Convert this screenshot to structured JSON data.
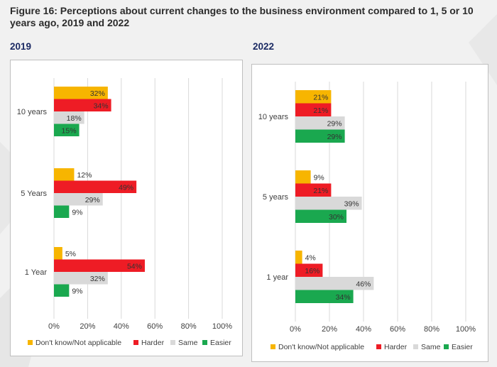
{
  "title": "Figure 16: Perceptions about current changes to the business environment compared to 1, 5 or 10 years ago, 2019 and 2022",
  "colors": {
    "dont_know": "#f7b500",
    "harder": "#ee1c25",
    "same": "#d9d9d9",
    "easier": "#1aa84f",
    "grid": "#d9d9d9",
    "axis_text": "#404040",
    "year_label": "#1b2a63"
  },
  "chart_data": [
    {
      "type": "bar",
      "orientation": "horizontal",
      "title": "2019",
      "categories": [
        "10 years",
        "5 Years",
        "1 Year"
      ],
      "series": [
        {
          "name": "Don't know/Not applicable",
          "values": [
            32,
            12,
            5
          ]
        },
        {
          "name": "Harder",
          "values": [
            34,
            49,
            54
          ]
        },
        {
          "name": "Same",
          "values": [
            18,
            29,
            32
          ]
        },
        {
          "name": "Easier",
          "values": [
            15,
            9,
            9
          ]
        }
      ],
      "data_labels": [
        [
          "32%",
          "12%",
          "5%"
        ],
        [
          "34%",
          "49%",
          "54%"
        ],
        [
          "18%",
          "29%",
          "32%"
        ],
        [
          "15%",
          "9%",
          "9%"
        ]
      ],
      "xlim": [
        0,
        100
      ],
      "x_ticks": [
        "0%",
        "20%",
        "40%",
        "60%",
        "80%",
        "100%"
      ],
      "grid": true,
      "legend_position": "bottom"
    },
    {
      "type": "bar",
      "orientation": "horizontal",
      "title": "2022",
      "categories": [
        "10 years",
        "5 years",
        "1 year"
      ],
      "series": [
        {
          "name": "Don't know/Not applicable",
          "values": [
            21,
            9,
            4
          ]
        },
        {
          "name": "Harder",
          "values": [
            21,
            21,
            16
          ]
        },
        {
          "name": "Same",
          "values": [
            29,
            39,
            46
          ]
        },
        {
          "name": "Easier",
          "values": [
            29,
            30,
            34
          ]
        }
      ],
      "data_labels": [
        [
          "21%",
          "9%",
          "4%"
        ],
        [
          "21%",
          "21%",
          "16%"
        ],
        [
          "29%",
          "39%",
          "46%"
        ],
        [
          "29%",
          "30%",
          "34%"
        ]
      ],
      "xlim": [
        0,
        100
      ],
      "x_ticks": [
        "0%",
        "20%",
        "40%",
        "60%",
        "80%",
        "100%"
      ],
      "grid": true,
      "legend_position": "bottom"
    }
  ]
}
